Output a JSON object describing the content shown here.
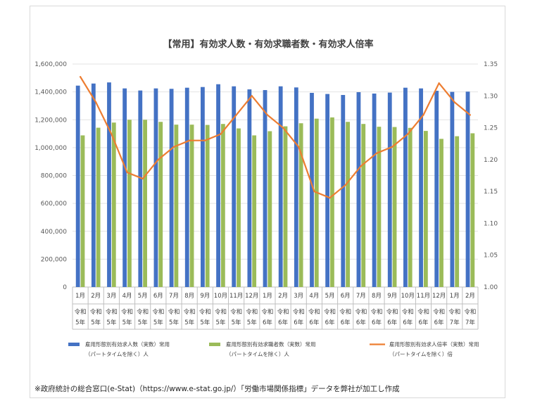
{
  "chart_data": {
    "type": "bar",
    "title": "【常用】有効求人数・有効求職者数・有効求人倍率",
    "note": "※政府統計の総合窓口(e-Stat)（https://www.e-stat.go.jp/）「労働市場関係指標」データを弊社が加工し作成",
    "categories": [
      {
        "month": "1月",
        "era": "令和",
        "year": "5年"
      },
      {
        "month": "2月",
        "era": "令和",
        "year": "5年"
      },
      {
        "month": "3月",
        "era": "令和",
        "year": "5年"
      },
      {
        "month": "4月",
        "era": "令和",
        "year": "5年"
      },
      {
        "month": "5月",
        "era": "令和",
        "year": "5年"
      },
      {
        "month": "6月",
        "era": "令和",
        "year": "5年"
      },
      {
        "month": "7月",
        "era": "令和",
        "year": "5年"
      },
      {
        "month": "8月",
        "era": "令和",
        "year": "5年"
      },
      {
        "month": "9月",
        "era": "令和",
        "year": "5年"
      },
      {
        "month": "10月",
        "era": "令和",
        "year": "5年"
      },
      {
        "month": "11月",
        "era": "令和",
        "year": "5年"
      },
      {
        "month": "12月",
        "era": "令和",
        "year": "5年"
      },
      {
        "month": "1月",
        "era": "令和",
        "year": "6年"
      },
      {
        "month": "2月",
        "era": "令和",
        "year": "6年"
      },
      {
        "month": "3月",
        "era": "令和",
        "year": "6年"
      },
      {
        "month": "4月",
        "era": "令和",
        "year": "6年"
      },
      {
        "month": "5月",
        "era": "令和",
        "year": "6年"
      },
      {
        "month": "6月",
        "era": "令和",
        "year": "6年"
      },
      {
        "month": "7月",
        "era": "令和",
        "year": "6年"
      },
      {
        "month": "8月",
        "era": "令和",
        "year": "6年"
      },
      {
        "month": "9月",
        "era": "令和",
        "year": "6年"
      },
      {
        "month": "10月",
        "era": "令和",
        "year": "6年"
      },
      {
        "month": "11月",
        "era": "令和",
        "year": "6年"
      },
      {
        "month": "12月",
        "era": "令和",
        "year": "6年"
      },
      {
        "month": "1月",
        "era": "令和",
        "year": "7年"
      },
      {
        "month": "2月",
        "era": "令和",
        "year": "7年"
      }
    ],
    "y_left": {
      "min": 0,
      "max": 1600000,
      "ticks": [
        0,
        200000,
        400000,
        600000,
        800000,
        1000000,
        1200000,
        1400000,
        1600000
      ]
    },
    "y_right": {
      "min": 1.0,
      "max": 1.35,
      "ticks": [
        1.0,
        1.05,
        1.1,
        1.15,
        1.2,
        1.25,
        1.3,
        1.35
      ]
    },
    "grid": true,
    "legend_position": "bottom",
    "series": [
      {
        "name": "雇用形態別有効求人数（実数）常用",
        "name2": "（パートタイムを除く）人",
        "type": "bar",
        "axis": "left",
        "color": "#4472c4",
        "values": [
          1445000,
          1460000,
          1468000,
          1425000,
          1410000,
          1425000,
          1422000,
          1430000,
          1435000,
          1455000,
          1440000,
          1418000,
          1413000,
          1440000,
          1432000,
          1393000,
          1385000,
          1378000,
          1398000,
          1388000,
          1395000,
          1430000,
          1425000,
          1408000,
          1400000,
          1402000
        ]
      },
      {
        "name": "雇用形態別有効求職者数（実数）常用",
        "name2": "（パートタイムを除く）人",
        "type": "bar",
        "axis": "left",
        "color": "#9bbb59",
        "values": [
          1088000,
          1143000,
          1180000,
          1200000,
          1200000,
          1185000,
          1165000,
          1165000,
          1163000,
          1170000,
          1138000,
          1088000,
          1118000,
          1153000,
          1175000,
          1208000,
          1217000,
          1185000,
          1170000,
          1150000,
          1148000,
          1142000,
          1120000,
          1063000,
          1082000,
          1103000
        ]
      },
      {
        "name": "雇用形態別有効求人倍率（実数）常用",
        "name2": "（パートタイムを除く）倍",
        "type": "line",
        "axis": "right",
        "color": "#ed7d31",
        "values": [
          1.33,
          1.29,
          1.24,
          1.18,
          1.17,
          1.2,
          1.22,
          1.23,
          1.23,
          1.24,
          1.27,
          1.3,
          1.27,
          1.25,
          1.22,
          1.15,
          1.14,
          1.16,
          1.19,
          1.21,
          1.22,
          1.24,
          1.27,
          1.32,
          1.29,
          1.27
        ]
      }
    ]
  }
}
